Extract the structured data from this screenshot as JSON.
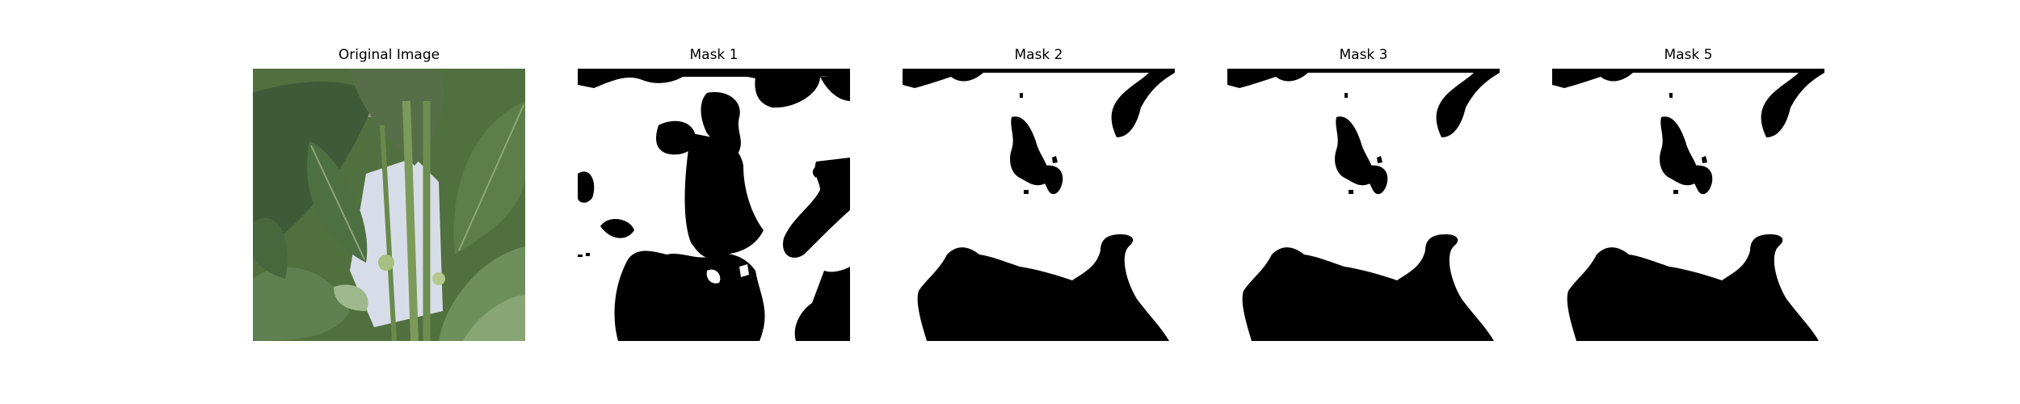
{
  "figure": {
    "panels": [
      {
        "title": "Original Image",
        "kind": "photo"
      },
      {
        "title": "Mask 1",
        "kind": "mask"
      },
      {
        "title": "Mask 2",
        "kind": "mask"
      },
      {
        "title": "Mask 3",
        "kind": "mask"
      },
      {
        "title": "Mask 5",
        "kind": "mask"
      }
    ]
  },
  "colors": {
    "background": "#ffffff",
    "mask_fg": "#000000",
    "mask_bg": "#ffffff",
    "leaf_dark": "#3f5f38",
    "leaf_mid": "#5d7f4f",
    "leaf_light": "#8aa874",
    "stem": "#7c9a5a",
    "sky": "#cfd8e6"
  }
}
